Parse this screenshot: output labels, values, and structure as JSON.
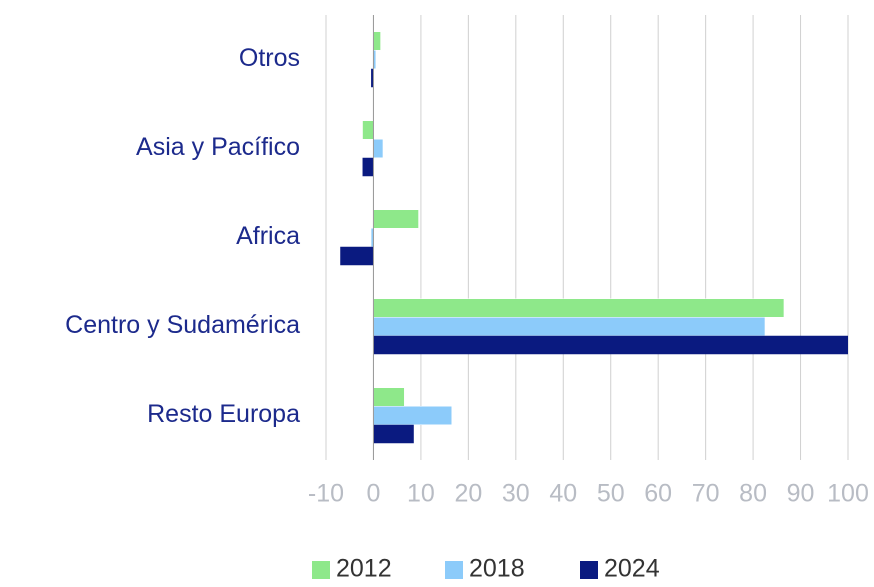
{
  "chart_data": {
    "type": "hbar",
    "categories": [
      "Otros",
      "Asia y Pacífico",
      "Africa",
      "Centro y Sudamérica",
      "Resto Europa"
    ],
    "series": [
      {
        "name": "2012",
        "color": "#8ee88a",
        "values": [
          1.5,
          -2.3,
          9.5,
          86.5,
          6.5
        ]
      },
      {
        "name": "2018",
        "color": "#8ccbfa",
        "values": [
          0.5,
          2,
          -0.5,
          82.5,
          16.5
        ]
      },
      {
        "name": "2024",
        "color": "#0a1a80",
        "values": [
          -0.5,
          -2.3,
          -7,
          100,
          8.5
        ]
      }
    ],
    "xlim": [
      -10,
      100
    ],
    "xticks": [
      -10,
      0,
      10,
      20,
      30,
      40,
      50,
      60,
      70,
      80,
      90,
      100
    ],
    "grid": true,
    "legend": "bottom"
  }
}
